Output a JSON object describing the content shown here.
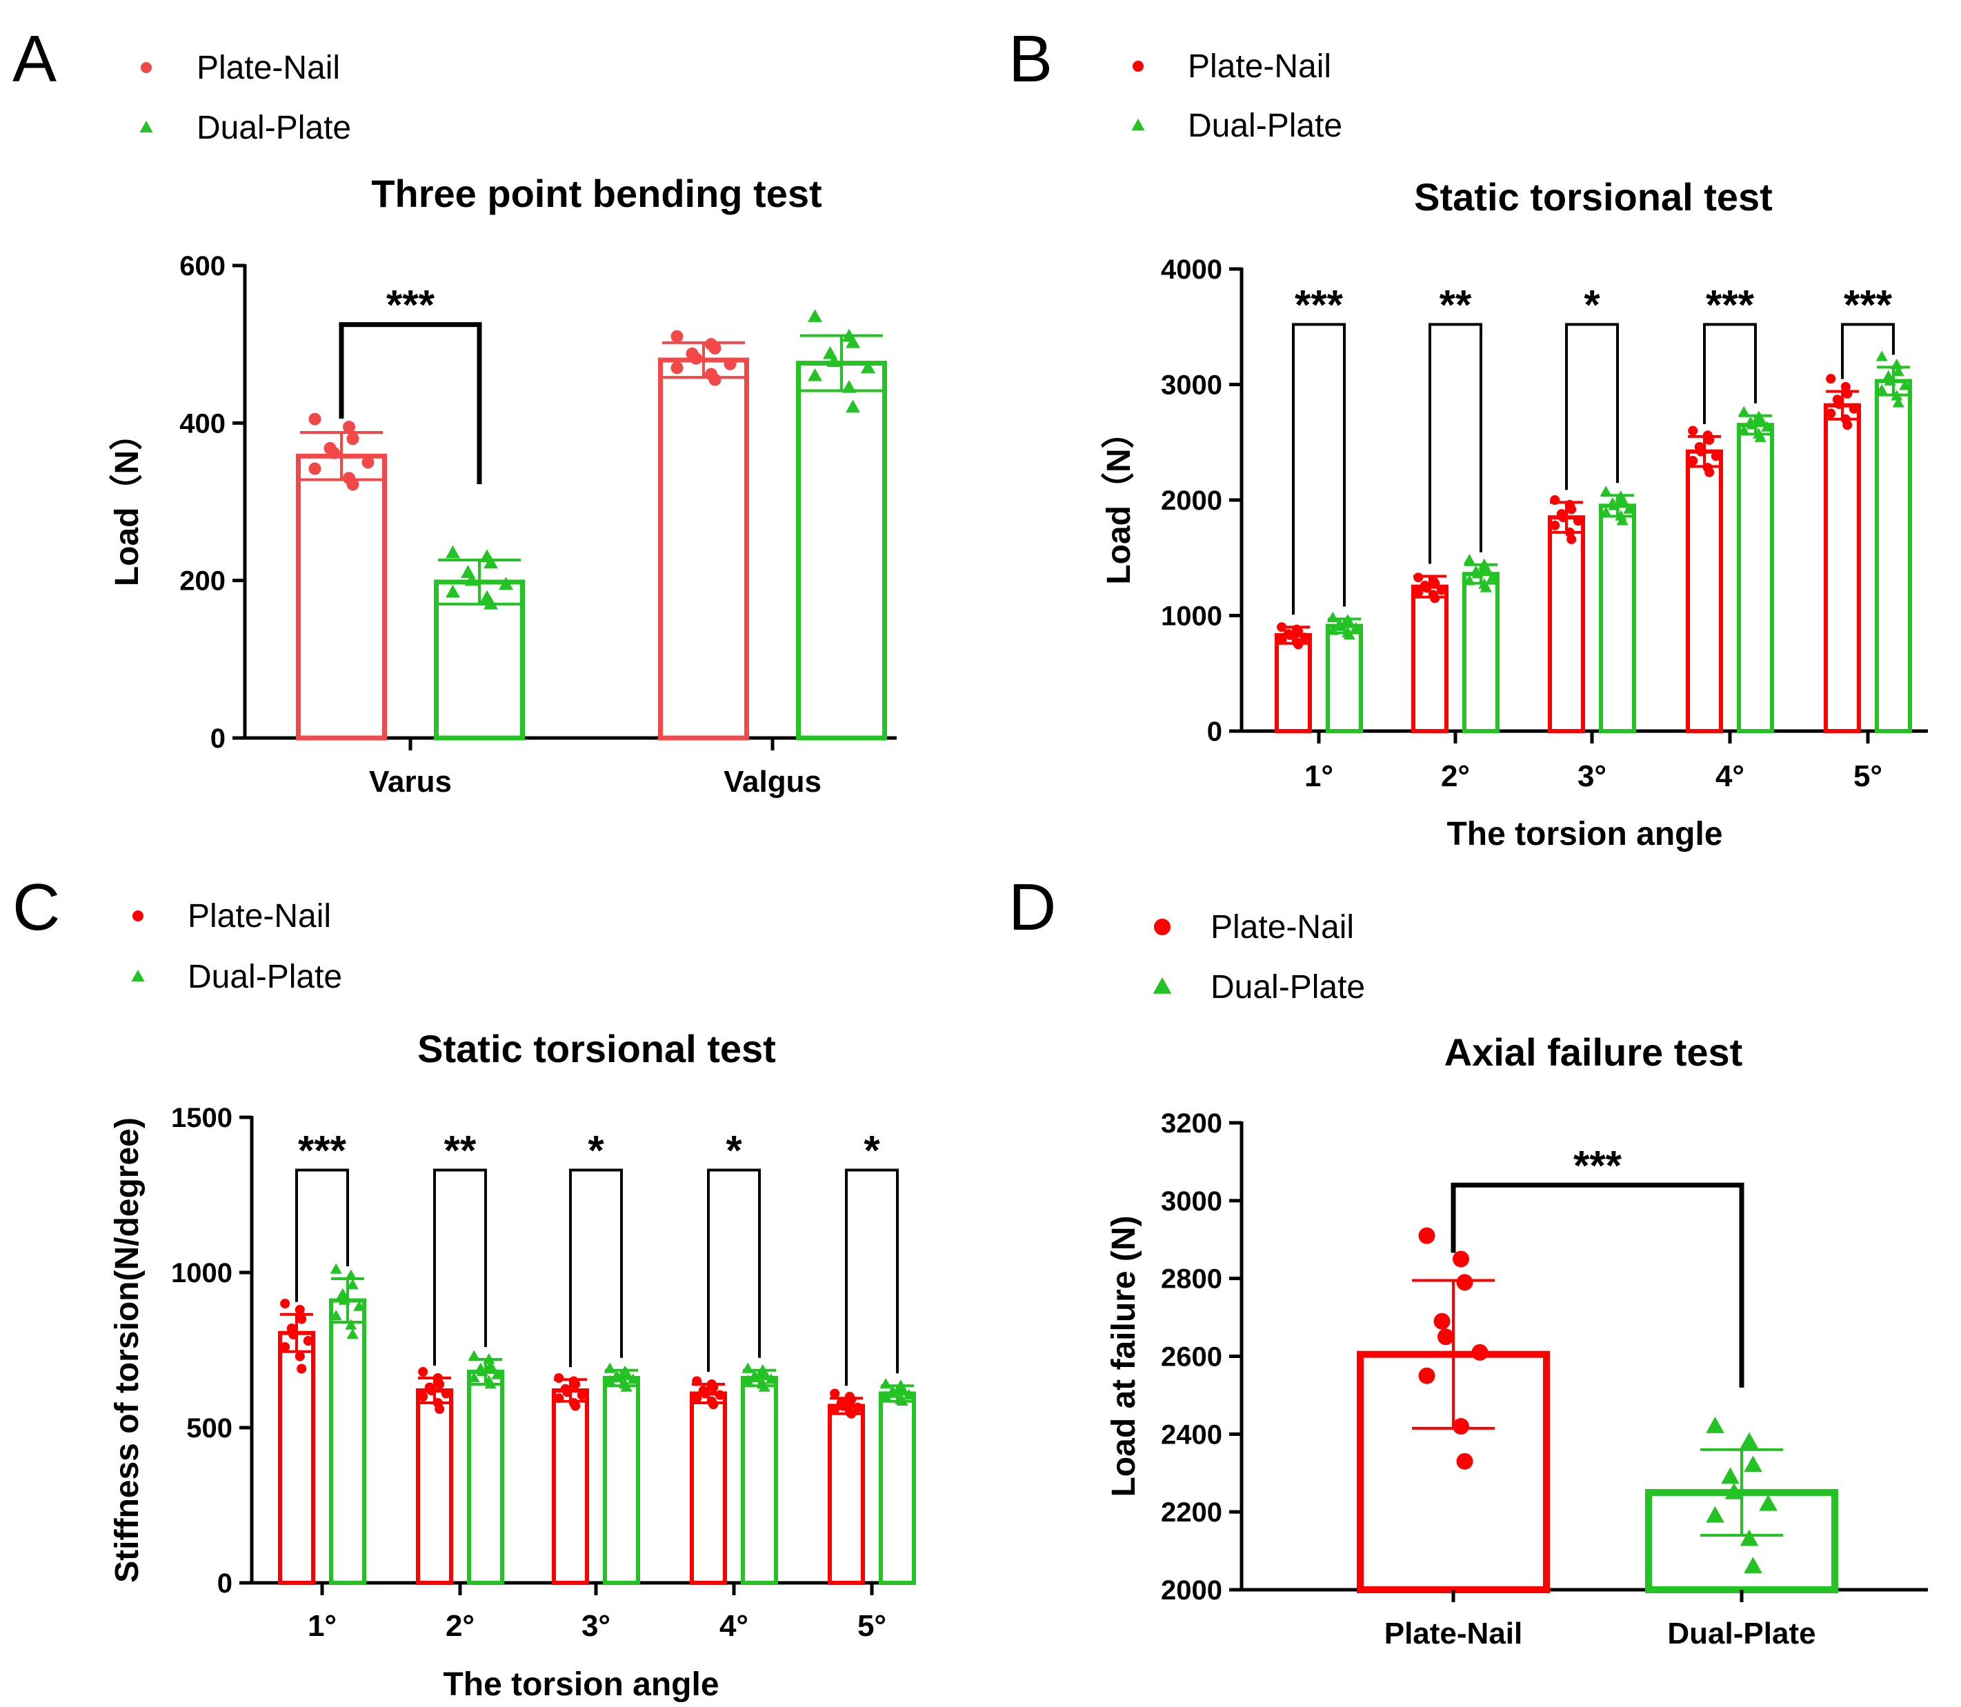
{
  "figure": {
    "panels": [
      "A",
      "B",
      "C",
      "D"
    ]
  },
  "colors": {
    "plate_nail": "#f24848",
    "plate_nail_d": "#ff0000",
    "dual_plate": "#22c322",
    "axis": "#000000"
  },
  "chart_data": [
    {
      "panel": "A",
      "type": "bar",
      "title": "Three point bending test",
      "xlabel": "",
      "ylabel": "Load（N）",
      "categories": [
        "Varus",
        "Valgus"
      ],
      "ylim": [
        0,
        600
      ],
      "yticks": [
        0,
        200,
        400,
        600
      ],
      "legend": [
        "Plate-Nail",
        "Dual-Plate"
      ],
      "series": [
        {
          "name": "Plate-Nail",
          "values": [
            358,
            480
          ],
          "errors": [
            30,
            22
          ]
        },
        {
          "name": "Dual-Plate",
          "values": [
            198,
            476
          ],
          "errors": [
            28,
            35
          ]
        }
      ],
      "points": [
        [
          [
            405,
            395,
            380,
            368,
            362,
            350,
            342,
            330,
            322
          ],
          [
            510,
            500,
            495,
            488,
            482,
            475,
            470,
            462,
            455
          ]
        ],
        [
          [
            235,
            230,
            222,
            210,
            200,
            195,
            185,
            178,
            170
          ],
          [
            535,
            510,
            502,
            488,
            478,
            470,
            460,
            445,
            420
          ]
        ]
      ],
      "significance": [
        {
          "left": "Varus.Plate-Nail",
          "right": "Varus.Dual-Plate",
          "label": "***",
          "bracket_y": 525
        }
      ]
    },
    {
      "panel": "B",
      "type": "bar",
      "title": "Static torsional test",
      "xlabel": "The torsion angle",
      "ylabel": "Load（N）",
      "categories": [
        "1°",
        "2°",
        "3°",
        "4°",
        "5°"
      ],
      "ylim": [
        0,
        4000
      ],
      "yticks": [
        0,
        1000,
        2000,
        3000,
        4000
      ],
      "legend": [
        "Plate-Nail",
        "Dual-Plate"
      ],
      "series": [
        {
          "name": "Plate-Nail",
          "values": [
            830,
            1250,
            1850,
            2420,
            2820
          ],
          "errors": [
            70,
            90,
            130,
            130,
            120
          ]
        },
        {
          "name": "Dual-Plate",
          "values": [
            910,
            1360,
            1950,
            2650,
            3030
          ],
          "errors": [
            60,
            80,
            90,
            80,
            120
          ]
        }
      ],
      "points": [
        [
          [
            900,
            880,
            860,
            840,
            830,
            810,
            790,
            770,
            750
          ],
          [
            1330,
            1300,
            1280,
            1260,
            1240,
            1220,
            1200,
            1180,
            1150
          ],
          [
            2000,
            1960,
            1920,
            1880,
            1850,
            1820,
            1780,
            1720,
            1660
          ],
          [
            2600,
            2560,
            2520,
            2460,
            2420,
            2380,
            2340,
            2280,
            2240
          ],
          [
            3050,
            2980,
            2920,
            2870,
            2830,
            2790,
            2750,
            2700,
            2650
          ]
        ],
        [
          [
            980,
            960,
            940,
            920,
            905,
            890,
            870,
            850,
            830
          ],
          [
            1480,
            1440,
            1410,
            1380,
            1360,
            1330,
            1300,
            1270,
            1240
          ],
          [
            2070,
            2030,
            2000,
            1970,
            1950,
            1920,
            1890,
            1860,
            1820
          ],
          [
            2760,
            2720,
            2700,
            2670,
            2650,
            2630,
            2600,
            2570,
            2540
          ],
          [
            3240,
            3170,
            3110,
            3070,
            3030,
            2990,
            2950,
            2900,
            2840
          ]
        ]
      ],
      "significance": [
        {
          "group": 0,
          "label": "***",
          "bracket_y": 3520
        },
        {
          "group": 1,
          "label": "**",
          "bracket_y": 3520
        },
        {
          "group": 2,
          "label": "*",
          "bracket_y": 3520
        },
        {
          "group": 3,
          "label": "***",
          "bracket_y": 3520
        },
        {
          "group": 4,
          "label": "***",
          "bracket_y": 3520
        }
      ]
    },
    {
      "panel": "C",
      "type": "bar",
      "title": "Static torsional test",
      "xlabel": "The torsion angle",
      "ylabel": "Stiffness of torsion(N/degree)",
      "categories": [
        "1°",
        "2°",
        "3°",
        "4°",
        "5°"
      ],
      "ylim": [
        0,
        1500
      ],
      "yticks": [
        0,
        500,
        1000,
        1500
      ],
      "legend": [
        "Plate-Nail",
        "Dual-Plate"
      ],
      "series": [
        {
          "name": "Plate-Nail",
          "values": [
            805,
            620,
            620,
            610,
            570
          ],
          "errors": [
            60,
            40,
            35,
            30,
            25
          ]
        },
        {
          "name": "Dual-Plate",
          "values": [
            910,
            680,
            660,
            660,
            610
          ],
          "errors": [
            70,
            40,
            25,
            25,
            25
          ]
        }
      ],
      "points": [
        [
          [
            900,
            880,
            850,
            820,
            800,
            780,
            760,
            730,
            690
          ],
          [
            680,
            660,
            640,
            630,
            620,
            610,
            600,
            580,
            560
          ],
          [
            660,
            650,
            640,
            625,
            615,
            605,
            595,
            580,
            570
          ],
          [
            650,
            640,
            630,
            620,
            610,
            605,
            595,
            585,
            575
          ],
          [
            610,
            600,
            590,
            580,
            570,
            565,
            560,
            550,
            545
          ]
        ],
        [
          [
            1010,
            990,
            960,
            930,
            910,
            890,
            860,
            830,
            800
          ],
          [
            730,
            720,
            700,
            690,
            680,
            670,
            660,
            650,
            640
          ],
          [
            690,
            680,
            675,
            665,
            660,
            655,
            650,
            640,
            630
          ],
          [
            690,
            685,
            675,
            665,
            660,
            655,
            650,
            640,
            630
          ],
          [
            640,
            635,
            625,
            615,
            610,
            605,
            600,
            590,
            585
          ]
        ]
      ],
      "significance": [
        {
          "group": 0,
          "label": "***",
          "bracket_y": 1330
        },
        {
          "group": 1,
          "label": "**",
          "bracket_y": 1330
        },
        {
          "group": 2,
          "label": "*",
          "bracket_y": 1330
        },
        {
          "group": 3,
          "label": "*",
          "bracket_y": 1330
        },
        {
          "group": 4,
          "label": "*",
          "bracket_y": 1330
        }
      ]
    },
    {
      "panel": "D",
      "type": "bar",
      "title": "Axial failure test",
      "xlabel": "",
      "ylabel": "Load at failure (N)",
      "categories": [
        "Plate-Nail",
        "Dual-Plate"
      ],
      "ylim": [
        2000,
        3200
      ],
      "yticks": [
        2000,
        2200,
        2400,
        2600,
        2800,
        3000,
        3200
      ],
      "legend": [
        "Plate-Nail",
        "Dual-Plate"
      ],
      "series": [
        {
          "name": "Plate-Nail",
          "values": [
            2605,
            null
          ],
          "errors": [
            190,
            null
          ]
        },
        {
          "name": "Dual-Plate",
          "values": [
            null,
            2250
          ],
          "errors": [
            null,
            110
          ]
        }
      ],
      "points": [
        [
          [
            2910,
            2850,
            2790,
            2690,
            2650,
            2610,
            2550,
            2420,
            2330
          ],
          []
        ],
        [
          [],
          [
            2420,
            2380,
            2320,
            2290,
            2250,
            2220,
            2190,
            2130,
            2060
          ]
        ]
      ],
      "significance": [
        {
          "left": "Plate-Nail",
          "right": "Dual-Plate",
          "label": "***",
          "bracket_y": 3040
        }
      ]
    }
  ]
}
